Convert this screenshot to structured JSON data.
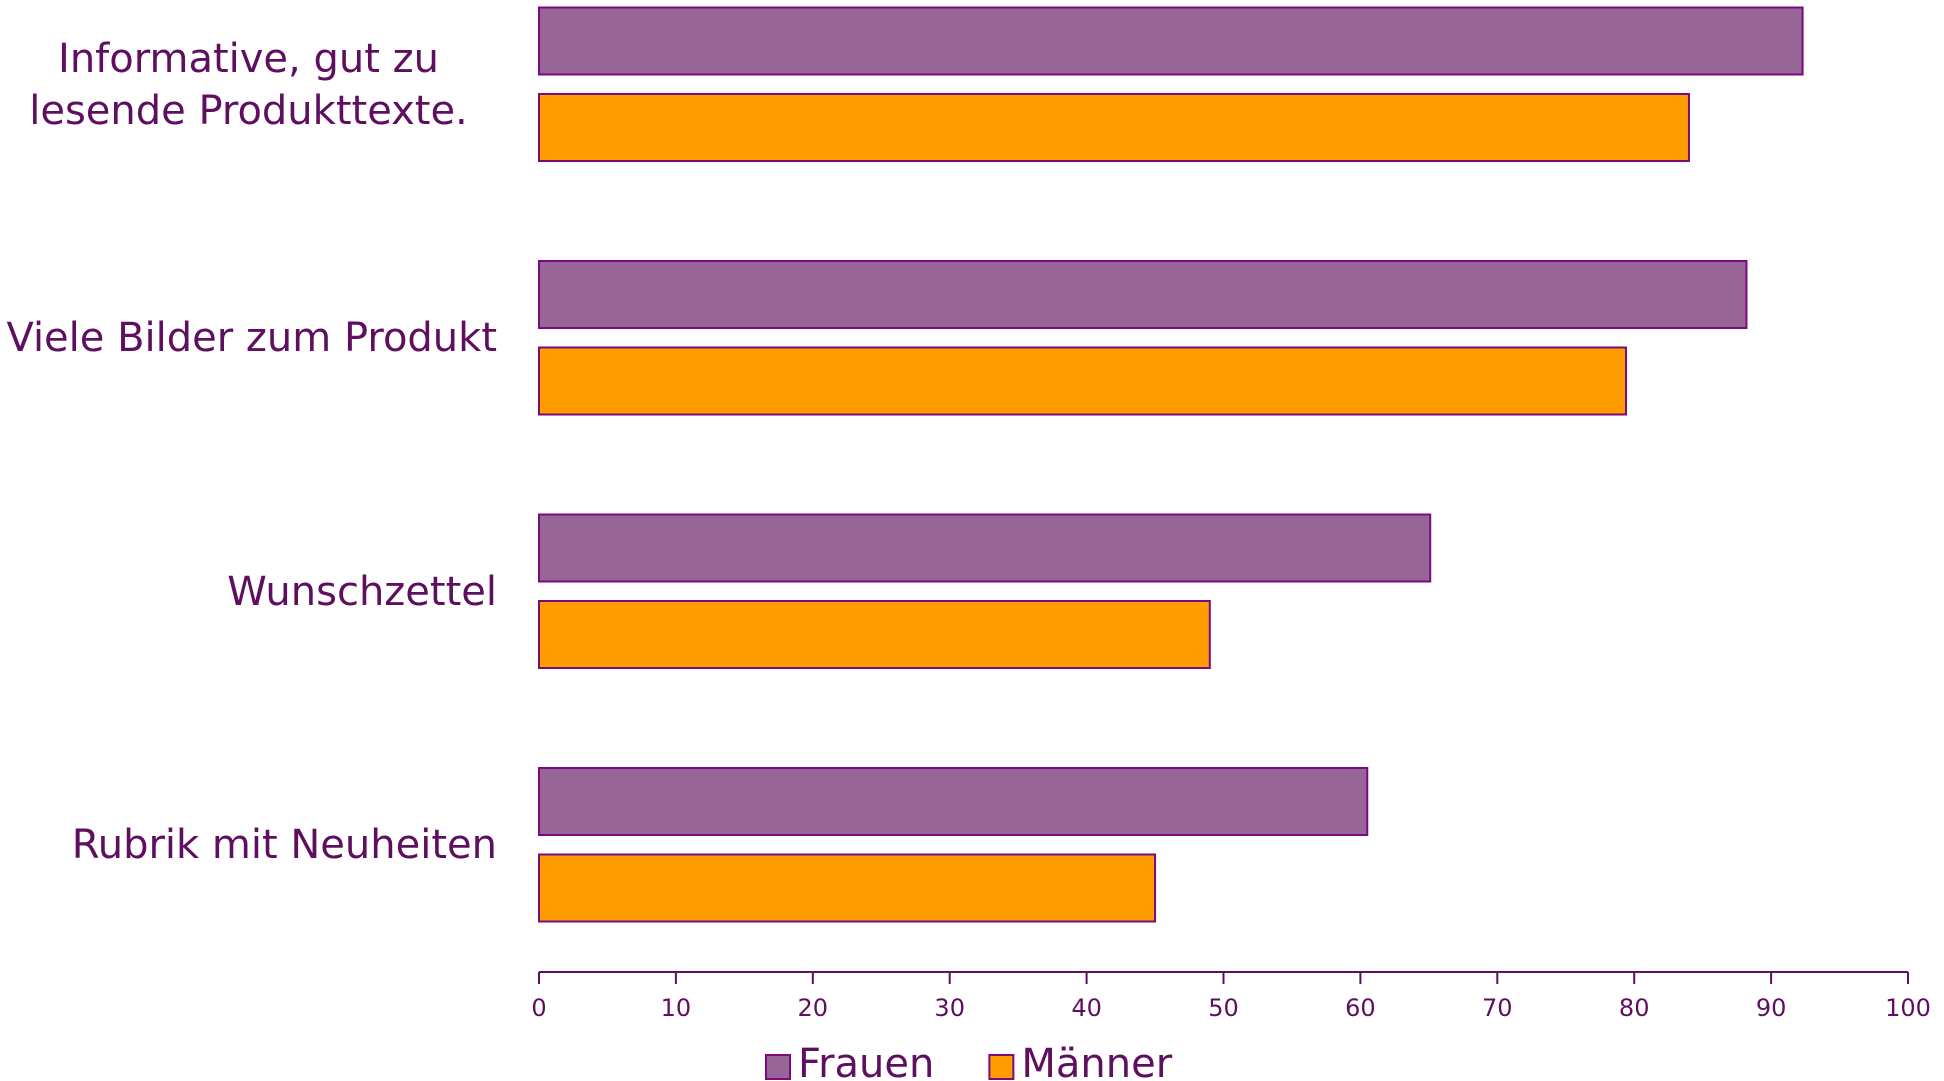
{
  "chart_data": {
    "type": "bar",
    "orientation": "horizontal",
    "categories": [
      "Informative, gut zu lesende Produkttexte.",
      "Viele Bilder zum Produkt",
      "Wunschzettel",
      "Rubrik mit Neuheiten"
    ],
    "series": [
      {
        "name": "Frauen",
        "color": "#976696",
        "values": [
          92.3,
          88.2,
          65.1,
          60.5
        ]
      },
      {
        "name": "Männer",
        "color": "#ff9c00",
        "values": [
          84.0,
          79.4,
          49.0,
          45.0
        ]
      }
    ],
    "xlim": [
      0,
      100
    ],
    "xticks": [
      0,
      10,
      20,
      30,
      40,
      50,
      60,
      70,
      80,
      90,
      100
    ],
    "legend": "bottom"
  }
}
